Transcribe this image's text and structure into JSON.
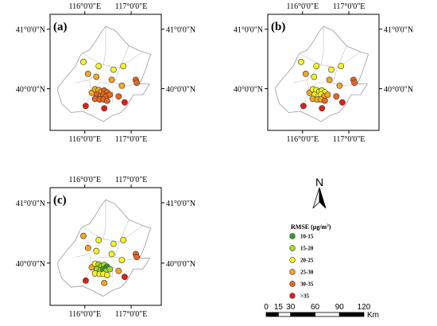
{
  "panels": [
    {
      "label": "(a)",
      "lon_labels": [
        "116°0'0\"E",
        "117°0'0\"E",
        "116°0'0\"E",
        "117°0'0\"E"
      ],
      "lat_labels": [
        "41°0'0\"N",
        "40°0'0\"N",
        "41°0'0\"N",
        "40°0'0\"N"
      ],
      "stations": [
        {
          "lon": 115.97,
          "lat": 40.45,
          "cls": "20-25"
        },
        {
          "lon": 116.3,
          "lat": 40.38,
          "cls": "20-25"
        },
        {
          "lon": 116.62,
          "lat": 40.32,
          "cls": "20-25"
        },
        {
          "lon": 116.83,
          "lat": 40.38,
          "cls": "20-25"
        },
        {
          "lon": 116.07,
          "lat": 40.25,
          "cls": "25-30"
        },
        {
          "lon": 116.25,
          "lat": 40.2,
          "cls": "25-30"
        },
        {
          "lon": 116.58,
          "lat": 40.15,
          "cls": "25-30"
        },
        {
          "lon": 117.1,
          "lat": 40.15,
          "cls": "30-35"
        },
        {
          "lon": 117.12,
          "lat": 40.1,
          "cls": "30-35"
        },
        {
          "lon": 116.8,
          "lat": 40.05,
          "cls": "25-30"
        },
        {
          "lon": 116.15,
          "lat": 39.93,
          "cls": "25-30"
        },
        {
          "lon": 116.22,
          "lat": 39.99,
          "cls": "25-30"
        },
        {
          "lon": 116.3,
          "lat": 39.98,
          "cls": "25-30"
        },
        {
          "lon": 116.36,
          "lat": 39.95,
          "cls": "25-30"
        },
        {
          "lon": 116.42,
          "lat": 39.97,
          "cls": "30-35"
        },
        {
          "lon": 116.48,
          "lat": 39.94,
          "cls": "30-35"
        },
        {
          "lon": 116.26,
          "lat": 39.9,
          "cls": "30-35"
        },
        {
          "lon": 116.34,
          "lat": 39.88,
          "cls": "30-35"
        },
        {
          "lon": 116.4,
          "lat": 39.9,
          "cls": "30-35"
        },
        {
          "lon": 116.46,
          "lat": 39.87,
          "cls": "30-35"
        },
        {
          "lon": 116.54,
          "lat": 39.9,
          "cls": "30-35"
        },
        {
          "lon": 116.22,
          "lat": 39.83,
          "cls": "30-35"
        },
        {
          "lon": 116.32,
          "lat": 39.82,
          "cls": "30-35"
        },
        {
          "lon": 116.4,
          "lat": 39.82,
          "cls": "30-35"
        },
        {
          "lon": 116.48,
          "lat": 39.8,
          "cls": "30-35"
        },
        {
          "lon": 116.73,
          "lat": 39.87,
          "cls": "30-35"
        },
        {
          "lon": 116.02,
          "lat": 39.71,
          "cls": ">35"
        },
        {
          "lon": 116.86,
          "lat": 39.77,
          "cls": ">35"
        },
        {
          "lon": 116.42,
          "lat": 39.67,
          "cls": ">35"
        }
      ]
    },
    {
      "label": "(b)",
      "lon_labels": [
        "116°0'0\"E",
        "117°0'0\"E",
        "116°0'0\"E",
        "117°0'0\"E"
      ],
      "lat_labels": [
        "41°0'0\"N",
        "40°0'0\"N",
        "41°0'0\"N",
        "40°0'0\"N"
      ],
      "stations": [
        {
          "lon": 115.97,
          "lat": 40.45,
          "cls": "20-25"
        },
        {
          "lon": 116.3,
          "lat": 40.38,
          "cls": "20-25"
        },
        {
          "lon": 116.62,
          "lat": 40.32,
          "cls": "20-25"
        },
        {
          "lon": 116.83,
          "lat": 40.38,
          "cls": "20-25"
        },
        {
          "lon": 116.07,
          "lat": 40.25,
          "cls": "25-30"
        },
        {
          "lon": 116.25,
          "lat": 40.2,
          "cls": "20-25"
        },
        {
          "lon": 116.58,
          "lat": 40.15,
          "cls": "25-30"
        },
        {
          "lon": 117.1,
          "lat": 40.15,
          "cls": "30-35"
        },
        {
          "lon": 117.12,
          "lat": 40.1,
          "cls": "30-35"
        },
        {
          "lon": 116.8,
          "lat": 40.05,
          "cls": "25-30"
        },
        {
          "lon": 116.15,
          "lat": 39.93,
          "cls": "25-30"
        },
        {
          "lon": 116.22,
          "lat": 39.99,
          "cls": "20-25"
        },
        {
          "lon": 116.3,
          "lat": 39.98,
          "cls": "20-25"
        },
        {
          "lon": 116.36,
          "lat": 39.95,
          "cls": "20-25"
        },
        {
          "lon": 116.42,
          "lat": 39.97,
          "cls": "20-25"
        },
        {
          "lon": 116.48,
          "lat": 39.94,
          "cls": "20-25"
        },
        {
          "lon": 116.26,
          "lat": 39.9,
          "cls": "20-25"
        },
        {
          "lon": 116.34,
          "lat": 39.88,
          "cls": "20-25"
        },
        {
          "lon": 116.4,
          "lat": 39.9,
          "cls": "20-25"
        },
        {
          "lon": 116.46,
          "lat": 39.87,
          "cls": "25-30"
        },
        {
          "lon": 116.54,
          "lat": 39.9,
          "cls": "25-30"
        },
        {
          "lon": 116.22,
          "lat": 39.83,
          "cls": "25-30"
        },
        {
          "lon": 116.32,
          "lat": 39.82,
          "cls": "25-30"
        },
        {
          "lon": 116.4,
          "lat": 39.82,
          "cls": "25-30"
        },
        {
          "lon": 116.48,
          "lat": 39.8,
          "cls": "30-35"
        },
        {
          "lon": 116.73,
          "lat": 39.87,
          "cls": "30-35"
        },
        {
          "lon": 116.02,
          "lat": 39.71,
          "cls": ">35"
        },
        {
          "lon": 116.86,
          "lat": 39.77,
          "cls": ">35"
        },
        {
          "lon": 116.42,
          "lat": 39.67,
          "cls": ">35"
        }
      ]
    },
    {
      "label": "(c)",
      "lon_labels": [
        "116°0'0\"E",
        "117°0'0\"E",
        "116°0'0\"E",
        "117°0'0\"E"
      ],
      "lat_labels": [
        "41°0'0\"N",
        "40°0'0\"N",
        "41°0'0\"N",
        "40°0'0\"N"
      ],
      "stations": [
        {
          "lon": 115.97,
          "lat": 40.45,
          "cls": "25-30"
        },
        {
          "lon": 116.3,
          "lat": 40.38,
          "cls": "20-25"
        },
        {
          "lon": 116.62,
          "lat": 40.32,
          "cls": "20-25"
        },
        {
          "lon": 116.83,
          "lat": 40.38,
          "cls": "20-25"
        },
        {
          "lon": 116.07,
          "lat": 40.25,
          "cls": "25-30"
        },
        {
          "lon": 116.25,
          "lat": 40.2,
          "cls": "20-25"
        },
        {
          "lon": 116.58,
          "lat": 40.15,
          "cls": "20-25"
        },
        {
          "lon": 117.1,
          "lat": 40.15,
          "cls": "30-35"
        },
        {
          "lon": 117.12,
          "lat": 40.1,
          "cls": "30-35"
        },
        {
          "lon": 116.8,
          "lat": 40.05,
          "cls": "20-25"
        },
        {
          "lon": 116.15,
          "lat": 39.93,
          "cls": "25-30"
        },
        {
          "lon": 116.22,
          "lat": 39.99,
          "cls": "20-25"
        },
        {
          "lon": 116.3,
          "lat": 39.98,
          "cls": "15-20"
        },
        {
          "lon": 116.36,
          "lat": 39.95,
          "cls": "15-20"
        },
        {
          "lon": 116.42,
          "lat": 39.97,
          "cls": "15-20"
        },
        {
          "lon": 116.48,
          "lat": 39.94,
          "cls": "10-15"
        },
        {
          "lon": 116.26,
          "lat": 39.9,
          "cls": "15-20"
        },
        {
          "lon": 116.34,
          "lat": 39.88,
          "cls": "15-20"
        },
        {
          "lon": 116.4,
          "lat": 39.9,
          "cls": "10-15"
        },
        {
          "lon": 116.46,
          "lat": 39.87,
          "cls": "15-20"
        },
        {
          "lon": 116.54,
          "lat": 39.9,
          "cls": "15-20"
        },
        {
          "lon": 116.22,
          "lat": 39.83,
          "cls": "20-25"
        },
        {
          "lon": 116.32,
          "lat": 39.82,
          "cls": "20-25"
        },
        {
          "lon": 116.4,
          "lat": 39.82,
          "cls": "20-25"
        },
        {
          "lon": 116.48,
          "lat": 39.8,
          "cls": "20-25"
        },
        {
          "lon": 116.73,
          "lat": 39.87,
          "cls": "25-30"
        },
        {
          "lon": 116.02,
          "lat": 39.71,
          "cls": ">35"
        },
        {
          "lon": 116.86,
          "lat": 39.77,
          "cls": ">35"
        },
        {
          "lon": 116.42,
          "lat": 39.67,
          "cls": "25-30"
        }
      ]
    }
  ],
  "legend": {
    "title_prefix": "RMSE (μg/m",
    "title_sup": "3",
    "title_suffix": ")",
    "classes": [
      {
        "label": "10-15",
        "color": "#2ca02c"
      },
      {
        "label": "15-20",
        "color": "#a8d82a"
      },
      {
        "label": "20-25",
        "color": "#f5f523"
      },
      {
        "label": "25-30",
        "color": "#f5a623"
      },
      {
        "label": "30-35",
        "color": "#e8661e"
      },
      {
        "label": ">35",
        "color": "#e0201b"
      }
    ]
  },
  "north_arrow": {
    "label": "N"
  },
  "scale_bar": {
    "ticks": [
      "0",
      "15",
      "30",
      "60",
      "90",
      "120"
    ],
    "unit": "Km"
  },
  "colors": {
    "outline": "#9a9a9a",
    "district": "#b4b4b4"
  }
}
